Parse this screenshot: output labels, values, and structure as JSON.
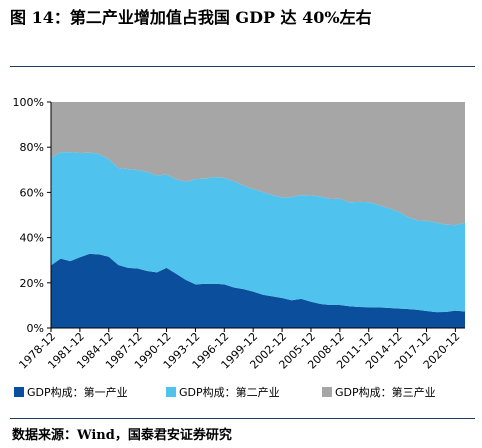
{
  "figure": {
    "title": "图 14：第二产业增加值占我国 GDP 达 40%左右",
    "source": "数据来源：Wind，国泰君安证券研究"
  },
  "chart_data": {
    "type": "area",
    "stacked": true,
    "x": [
      "1978-12",
      "1979-12",
      "1980-12",
      "1981-12",
      "1982-12",
      "1983-12",
      "1984-12",
      "1985-12",
      "1986-12",
      "1987-12",
      "1988-12",
      "1989-12",
      "1990-12",
      "1991-12",
      "1992-12",
      "1993-12",
      "1994-12",
      "1995-12",
      "1996-12",
      "1997-12",
      "1998-12",
      "1999-12",
      "2000-12",
      "2001-12",
      "2002-12",
      "2003-12",
      "2004-12",
      "2005-12",
      "2006-12",
      "2007-12",
      "2008-12",
      "2009-12",
      "2010-12",
      "2011-12",
      "2012-12",
      "2013-12",
      "2014-12",
      "2015-12",
      "2016-12",
      "2017-12",
      "2018-12",
      "2019-12",
      "2020-12",
      "2021-12"
    ],
    "x_tick_labels": [
      "1978-12",
      "1981-12",
      "1984-12",
      "1987-12",
      "1990-12",
      "1993-12",
      "1996-12",
      "1999-12",
      "2002-12",
      "2005-12",
      "2008-12",
      "2011-12",
      "2014-12",
      "2017-12",
      "2020-12"
    ],
    "series": [
      {
        "name": "GDP构成：第一产业",
        "color": "#0b4f9c",
        "values": [
          27.7,
          30.7,
          29.6,
          31.3,
          32.8,
          32.6,
          31.5,
          27.9,
          26.6,
          26.3,
          25.2,
          24.6,
          26.6,
          24.0,
          21.3,
          19.3,
          19.5,
          19.6,
          19.3,
          17.9,
          17.2,
          16.1,
          14.7,
          14.0,
          13.3,
          12.3,
          12.9,
          11.6,
          10.6,
          10.2,
          10.2,
          9.6,
          9.3,
          9.2,
          9.1,
          8.9,
          8.6,
          8.4,
          8.1,
          7.5,
          7.0,
          7.1,
          7.7,
          7.3
        ]
      },
      {
        "name": "GDP构成：第二产业",
        "color": "#4fc3ee",
        "values": [
          47.7,
          47.1,
          48.2,
          46.1,
          44.8,
          44.4,
          43.1,
          42.9,
          43.7,
          43.6,
          43.8,
          42.8,
          41.3,
          41.8,
          43.4,
          46.6,
          46.6,
          47.2,
          47.1,
          47.1,
          45.8,
          45.4,
          45.5,
          44.8,
          44.5,
          45.6,
          45.9,
          47.0,
          47.6,
          46.9,
          47.0,
          46.0,
          46.5,
          46.5,
          45.4,
          44.2,
          43.1,
          40.8,
          39.6,
          39.9,
          39.7,
          38.6,
          37.8,
          39.3
        ]
      },
      {
        "name": "GDP构成：第三产业",
        "color": "#a6a6a6",
        "values": [
          24.6,
          22.2,
          22.2,
          22.6,
          22.4,
          23.0,
          25.4,
          29.2,
          29.7,
          30.1,
          31.0,
          32.6,
          32.1,
          34.2,
          35.3,
          34.1,
          33.9,
          33.2,
          33.6,
          35.0,
          37.0,
          38.5,
          39.8,
          41.2,
          42.2,
          42.1,
          41.2,
          41.4,
          41.8,
          42.9,
          42.8,
          44.4,
          44.2,
          44.3,
          45.5,
          46.9,
          48.3,
          50.8,
          52.3,
          52.6,
          53.3,
          54.3,
          54.5,
          53.4
        ]
      }
    ],
    "y_ticks": [
      "0%",
      "20%",
      "40%",
      "60%",
      "80%",
      "100%"
    ],
    "ylim": [
      0,
      100
    ],
    "legend_position": "bottom",
    "grid": false
  }
}
